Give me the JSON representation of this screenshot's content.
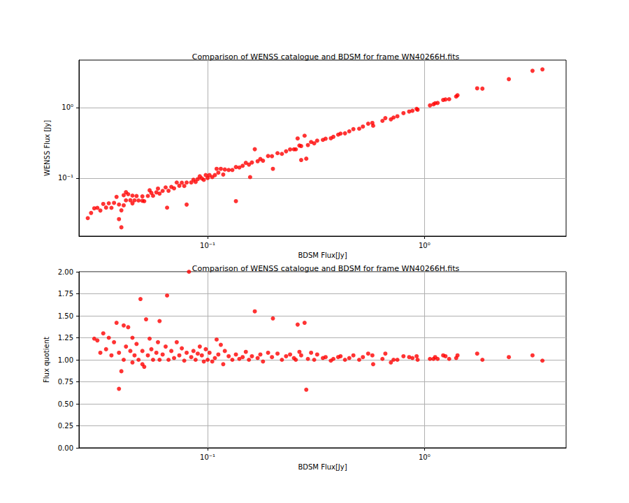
{
  "chart_data": [
    {
      "type": "scatter",
      "title": "Comparison of WENSS catalogue and BDSM for frame WN40266H.fits",
      "x_label": "BDSM Flux[Jy]",
      "y_label": "WENSS Flux [Jy]",
      "log": true,
      "grid": true,
      "color": "#ff0000",
      "marker": "circle",
      "xlim": [
        0.0255,
        4.5
      ],
      "ylim": [
        0.015,
        4.7
      ],
      "xticks": [
        {
          "value": 0.1,
          "label": "10⁻¹"
        },
        {
          "value": 1,
          "label": "10⁰"
        }
      ],
      "yticks": [
        {
          "value": 0.1,
          "label": "10⁻¹"
        },
        {
          "value": 1,
          "label": "10⁰"
        }
      ],
      "x": [
        3.5,
        3.15,
        2.45,
        1.85,
        1.75,
        1.42,
        1.4,
        1.3,
        1.25,
        1.22,
        1.15,
        1.12,
        1.1,
        1.06,
        0.93,
        0.92,
        0.88,
        0.85,
        0.8,
        0.75,
        0.72,
        0.7,
        0.66,
        0.64,
        0.58,
        0.575,
        0.55,
        0.52,
        0.5,
        0.47,
        0.45,
        0.43,
        0.41,
        0.4,
        0.38,
        0.37,
        0.35,
        0.34,
        0.32,
        0.31,
        0.3,
        0.29,
        0.285,
        0.28,
        0.27,
        0.265,
        0.26,
        0.255,
        0.25,
        0.24,
        0.23,
        0.22,
        0.21,
        0.2,
        0.198,
        0.19,
        0.18,
        0.175,
        0.17,
        0.165,
        0.16,
        0.155,
        0.15,
        0.145,
        0.14,
        0.135,
        0.13,
        0.125,
        0.12,
        0.118,
        0.115,
        0.112,
        0.11,
        0.108,
        0.105,
        0.102,
        0.1,
        0.098,
        0.096,
        0.094,
        0.092,
        0.09,
        0.088,
        0.086,
        0.084,
        0.08,
        0.078,
        0.076,
        0.074,
        0.072,
        0.07,
        0.068,
        0.066,
        0.064,
        0.062,
        0.059,
        0.058,
        0.056,
        0.055,
        0.054,
        0.053,
        0.051,
        0.05,
        0.048,
        0.047,
        0.046,
        0.045,
        0.044,
        0.043,
        0.042,
        0.041,
        0.04,
        0.039,
        0.038,
        0.037,
        0.036,
        0.035,
        0.034,
        0.033,
        0.032,
        0.031,
        0.03,
        0.039,
        0.041,
        0.045,
        0.05,
        0.06,
        0.135,
        0.08,
        0.04,
        0.042,
        0.028,
        0.029,
        0.157,
        0.27,
        0.065
      ],
      "values": [
        3.47,
        3.31,
        2.52,
        1.85,
        1.87,
        1.49,
        1.43,
        1.31,
        1.3,
        1.28,
        1.16,
        1.15,
        1.11,
        1.07,
        0.93,
        0.957,
        0.898,
        0.876,
        0.832,
        0.75,
        0.72,
        0.679,
        0.706,
        0.646,
        0.551,
        0.604,
        0.589,
        0.536,
        0.5,
        0.494,
        0.459,
        0.43,
        0.426,
        0.412,
        0.384,
        0.366,
        0.361,
        0.347,
        0.339,
        0.31,
        0.324,
        0.293,
        0.188,
        0.398,
        0.284,
        0.289,
        0.364,
        0.255,
        0.255,
        0.254,
        0.239,
        0.22,
        0.225,
        0.135,
        0.204,
        0.205,
        0.176,
        0.186,
        0.173,
        0.256,
        0.166,
        0.155,
        0.164,
        0.149,
        0.141,
        0.143,
        0.13,
        0.13,
        0.132,
        0.112,
        0.135,
        0.119,
        0.135,
        0.11,
        0.103,
        0.11,
        0.1,
        0.11,
        0.0941,
        0.0987,
        0.106,
        0.0963,
        0.088,
        0.0946,
        0.0865,
        0.0864,
        0.0772,
        0.0859,
        0.0777,
        0.0864,
        0.0714,
        0.0748,
        0.066,
        0.0736,
        0.0657,
        0.0708,
        0.0626,
        0.056,
        0.0616,
        0.067,
        0.0557,
        0.0469,
        0.055,
        0.048,
        0.0555,
        0.0483,
        0.0563,
        0.0484,
        0.0589,
        0.0483,
        0.041,
        0.0348,
        0.0421,
        0.054,
        0.0444,
        0.0378,
        0.0438,
        0.0381,
        0.0429,
        0.0346,
        0.0378,
        0.0372,
        0.0261,
        0.057,
        0.0437,
        0.0475,
        0.06,
        0.047,
        0.042,
        0.02,
        0.063,
        0.027,
        0.032,
        0.103,
        0.18,
        0.038
      ]
    },
    {
      "type": "scatter",
      "title": "Comparison of WENSS catalogue and BDSM for frame WN40266H.fits",
      "x_label": "BDSM Flux[Jy]",
      "y_label": "Flux quotient",
      "log": "x",
      "grid": true,
      "color": "#ff0000",
      "marker": "circle",
      "xlim": [
        0.0255,
        4.5
      ],
      "ylim": [
        0,
        2
      ],
      "xticks": [
        {
          "value": 0.1,
          "label": "10⁻¹"
        },
        {
          "value": 1,
          "label": "10⁰"
        }
      ],
      "yticks": [
        {
          "value": 0,
          "label": "0.00"
        },
        {
          "value": 0.25,
          "label": "0.25"
        },
        {
          "value": 0.5,
          "label": "0.50"
        },
        {
          "value": 0.75,
          "label": "0.75"
        },
        {
          "value": 1,
          "label": "1.00"
        },
        {
          "value": 1.25,
          "label": "1.25"
        },
        {
          "value": 1.5,
          "label": "1.50"
        },
        {
          "value": 1.75,
          "label": "1.75"
        },
        {
          "value": 2,
          "label": "2.00"
        }
      ],
      "x": [
        3.5,
        3.15,
        2.45,
        1.85,
        1.75,
        1.42,
        1.4,
        1.3,
        1.25,
        1.22,
        1.15,
        1.12,
        1.1,
        1.06,
        0.93,
        0.92,
        0.88,
        0.85,
        0.8,
        0.75,
        0.72,
        0.7,
        0.66,
        0.64,
        0.58,
        0.575,
        0.55,
        0.52,
        0.5,
        0.47,
        0.45,
        0.43,
        0.41,
        0.4,
        0.38,
        0.37,
        0.35,
        0.34,
        0.32,
        0.31,
        0.3,
        0.29,
        0.285,
        0.28,
        0.27,
        0.265,
        0.26,
        0.255,
        0.25,
        0.24,
        0.23,
        0.22,
        0.21,
        0.2,
        0.198,
        0.19,
        0.18,
        0.175,
        0.17,
        0.165,
        0.16,
        0.155,
        0.15,
        0.145,
        0.14,
        0.135,
        0.13,
        0.125,
        0.12,
        0.118,
        0.115,
        0.112,
        0.11,
        0.108,
        0.105,
        0.102,
        0.1,
        0.098,
        0.096,
        0.094,
        0.092,
        0.09,
        0.088,
        0.086,
        0.084,
        0.082,
        0.08,
        0.078,
        0.076,
        0.074,
        0.072,
        0.07,
        0.068,
        0.066,
        0.065,
        0.064,
        0.062,
        0.06,
        0.059,
        0.058,
        0.056,
        0.055,
        0.054,
        0.053,
        0.052,
        0.051,
        0.05,
        0.049,
        0.048,
        0.047,
        0.046,
        0.045,
        0.044,
        0.043,
        0.042,
        0.041,
        0.04,
        0.039,
        0.038,
        0.037,
        0.036,
        0.035,
        0.034,
        0.033,
        0.032,
        0.031,
        0.03,
        0.039,
        0.041,
        0.045,
        0.05,
        0.06
      ],
      "values": [
        0.99,
        1.05,
        1.03,
        1.0,
        1.07,
        1.05,
        1.02,
        1.01,
        1.04,
        1.05,
        1.01,
        1.03,
        1.01,
        1.01,
        1.0,
        1.04,
        1.02,
        1.03,
        1.04,
        1.0,
        1.0,
        0.97,
        1.07,
        1.01,
        0.95,
        1.05,
        1.07,
        1.03,
        1.0,
        1.05,
        1.02,
        1.0,
        1.04,
        1.03,
        1.01,
        0.99,
        1.03,
        1.02,
        1.06,
        1.0,
        1.08,
        1.01,
        0.66,
        1.42,
        1.05,
        1.09,
        1.4,
        1.0,
        1.02,
        1.06,
        1.04,
        1.0,
        1.07,
        1.47,
        1.03,
        1.08,
        0.98,
        1.06,
        1.02,
        1.55,
        1.04,
        1.0,
        1.09,
        1.03,
        1.01,
        1.06,
        1.0,
        1.04,
        1.1,
        0.95,
        1.17,
        1.06,
        1.23,
        1.02,
        0.98,
        1.08,
        1.0,
        1.12,
        0.98,
        1.05,
        1.15,
        1.07,
        1.0,
        1.1,
        1.03,
        2.0,
        1.08,
        0.99,
        1.13,
        1.05,
        1.2,
        1.02,
        1.1,
        1.0,
        1.73,
        1.15,
        1.06,
        1.44,
        1.2,
        1.08,
        1.0,
        1.12,
        1.24,
        1.05,
        1.46,
        0.92,
        1.1,
        1.69,
        1.0,
        1.18,
        1.05,
        1.25,
        1.1,
        1.37,
        1.15,
        1.0,
        0.87,
        1.08,
        1.42,
        1.2,
        1.05,
        1.25,
        1.12,
        1.3,
        1.08,
        1.22,
        1.24,
        0.67,
        1.39,
        0.97,
        0.95,
        1.0
      ]
    }
  ]
}
